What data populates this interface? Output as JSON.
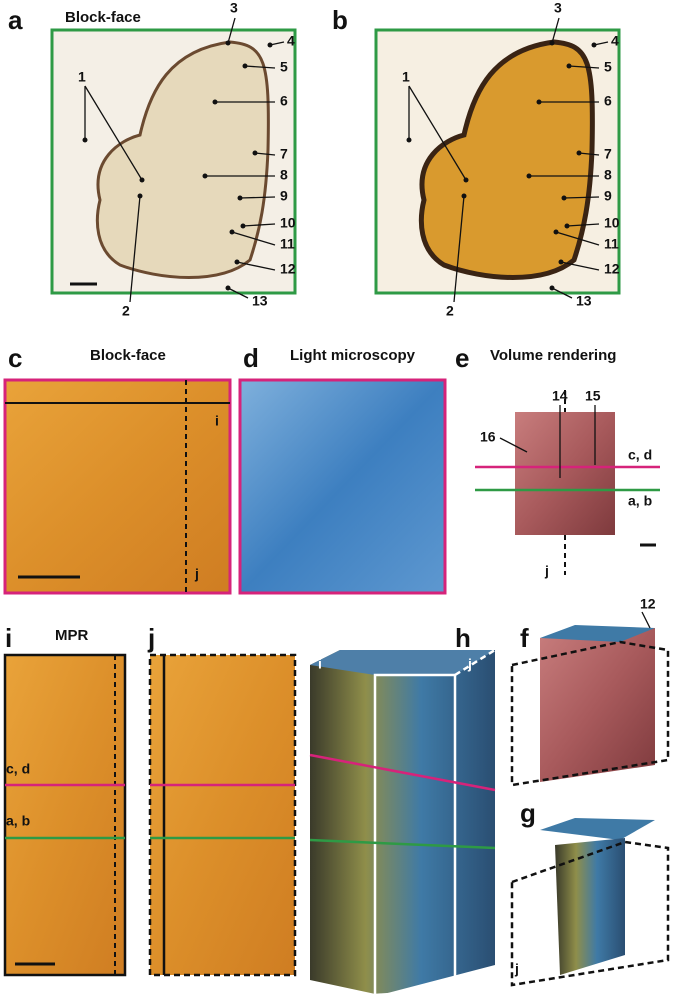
{
  "panels": [
    {
      "letter": "a",
      "title": "Block-face",
      "labels": [
        "1",
        "2",
        "3",
        "4",
        "5",
        "6",
        "7",
        "8",
        "9",
        "10",
        "11",
        "12",
        "13"
      ]
    },
    {
      "letter": "b",
      "labels": [
        "1",
        "2",
        "3",
        "4",
        "5",
        "6",
        "7",
        "8",
        "9",
        "10",
        "11",
        "12",
        "13"
      ]
    },
    {
      "letter": "c",
      "title": "Block-face",
      "labels": [
        "i",
        "j"
      ]
    },
    {
      "letter": "d",
      "title": "Light microscopy"
    },
    {
      "letter": "e",
      "title": "Volume rendering",
      "labels": [
        "14",
        "15",
        "16",
        "c, d",
        "a, b",
        "j"
      ]
    },
    {
      "letter": "i",
      "title": "MPR",
      "labels": [
        "c, d",
        "a, b"
      ]
    },
    {
      "letter": "j"
    },
    {
      "letter": "h",
      "labels": [
        "i",
        "j"
      ]
    },
    {
      "letter": "f",
      "labels": [
        "12"
      ]
    },
    {
      "letter": "g",
      "labels": [
        "j"
      ]
    }
  ]
}
